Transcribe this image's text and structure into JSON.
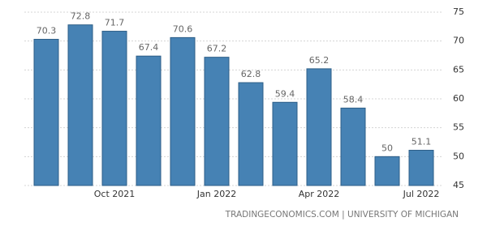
{
  "chart_data": {
    "type": "bar",
    "categories": [
      null,
      null,
      "Oct 2021",
      null,
      null,
      "Jan 2022",
      null,
      null,
      "Apr 2022",
      null,
      null,
      "Jul 2022"
    ],
    "values": [
      70.3,
      72.8,
      71.7,
      67.4,
      70.6,
      67.2,
      62.8,
      59.4,
      65.2,
      58.4,
      50,
      51.1
    ],
    "color": "#4682b4",
    "ylim": [
      45,
      75
    ],
    "yticks": [
      45,
      50,
      55,
      60,
      65,
      70,
      75
    ],
    "grid": true,
    "source": "TRADINGECONOMICS.COM | UNIVERSITY OF MICHIGAN"
  }
}
